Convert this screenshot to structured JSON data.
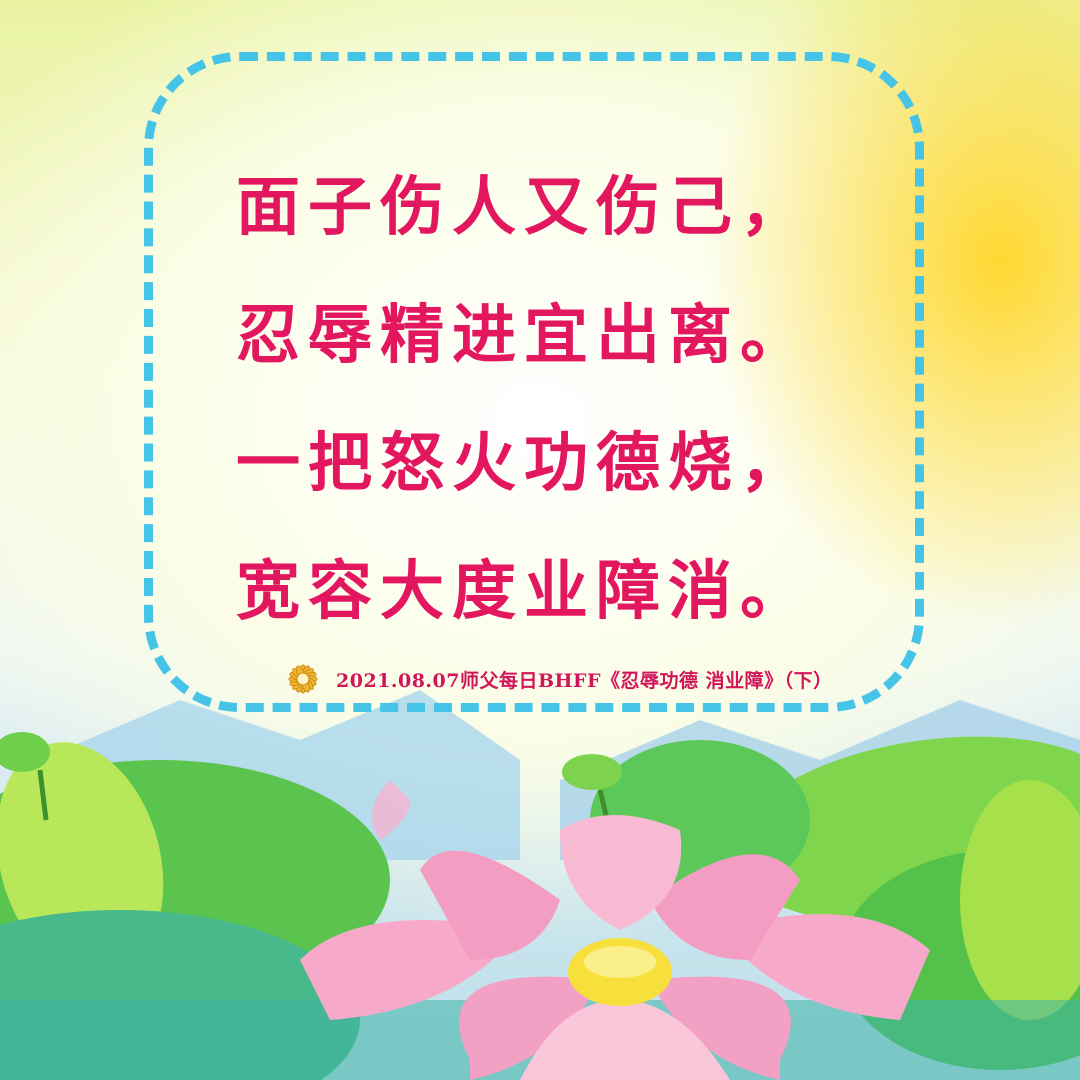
{
  "poem": {
    "lines": [
      "面子伤人又伤己，",
      "忍辱精进宜出离。",
      "一把怒火功德烧，",
      "宽容大度业障消。"
    ]
  },
  "caption": {
    "text": "2021.08.07师父每日BHFF《忍辱功德 消业障》（下）",
    "icon": "golden-lotus-icon"
  },
  "colors": {
    "poem_text": "#e3175f",
    "caption_text": "#d1155a",
    "frame_dash": "#46c4e8",
    "lotus_pink": "#f29bc0",
    "leaf_green": "#5fcf4a"
  }
}
